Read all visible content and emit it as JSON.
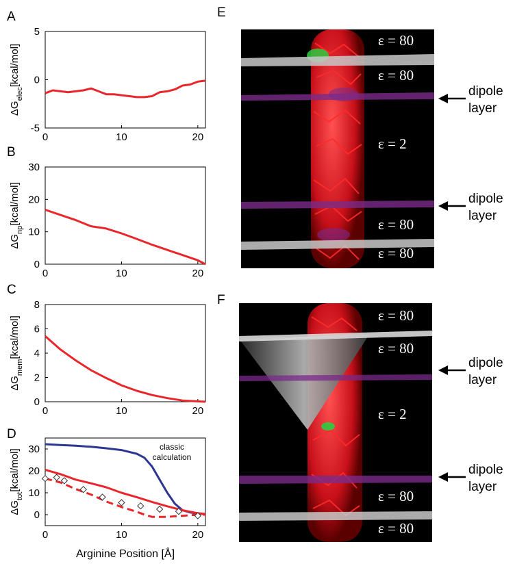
{
  "colors": {
    "red": "#e8262b",
    "blue": "#2c3592",
    "markers": "#333333"
  },
  "chart_data": [
    {
      "type": "line",
      "label": "A",
      "ylabel": "ΔG",
      "ylabel_sub": "elec",
      "ylabel_unit": "[kcal/mol]",
      "xlim": [
        0,
        21
      ],
      "ylim": [
        -5,
        5
      ],
      "xticks": [
        0,
        10,
        20
      ],
      "yticks": [
        -5,
        0,
        5
      ],
      "series": [
        {
          "color": "red",
          "x": [
            0,
            1,
            2,
            3,
            4,
            5,
            6,
            7,
            8,
            9,
            10,
            11,
            12,
            13,
            14,
            15,
            16,
            17,
            18,
            19,
            20,
            21
          ],
          "y": [
            -1.4,
            -1.1,
            -1.2,
            -1.3,
            -1.2,
            -1.1,
            -0.9,
            -1.2,
            -1.5,
            -1.5,
            -1.6,
            -1.7,
            -1.8,
            -1.8,
            -1.7,
            -1.3,
            -1.2,
            -1.0,
            -0.6,
            -0.5,
            -0.2,
            -0.1
          ]
        }
      ]
    },
    {
      "type": "line",
      "label": "B",
      "ylabel": "ΔG",
      "ylabel_sub": "np",
      "ylabel_unit": "[kcal/mol]",
      "xlim": [
        0,
        21
      ],
      "ylim": [
        0,
        30
      ],
      "xticks": [
        0,
        10,
        20
      ],
      "yticks": [
        0,
        10,
        20,
        30
      ],
      "series": [
        {
          "color": "red",
          "x": [
            0,
            2,
            4,
            6,
            8,
            10,
            12,
            14,
            16,
            18,
            20,
            21
          ],
          "y": [
            16.8,
            15.2,
            13.6,
            11.7,
            11.0,
            9.5,
            7.8,
            6.0,
            4.4,
            2.8,
            1.2,
            0
          ]
        }
      ]
    },
    {
      "type": "line",
      "label": "C",
      "ylabel": "ΔG",
      "ylabel_sub": "mem",
      "ylabel_unit": "[kcal/mol]",
      "xlim": [
        0,
        21
      ],
      "ylim": [
        0,
        8
      ],
      "xticks": [
        0,
        10,
        20
      ],
      "yticks": [
        0,
        2,
        4,
        6,
        8
      ],
      "series": [
        {
          "color": "red",
          "x": [
            0,
            2,
            4,
            6,
            8,
            10,
            12,
            14,
            16,
            18,
            20,
            21
          ],
          "y": [
            5.4,
            4.3,
            3.4,
            2.6,
            1.95,
            1.35,
            0.9,
            0.55,
            0.3,
            0.1,
            0.03,
            0
          ]
        }
      ]
    },
    {
      "type": "line",
      "label": "D",
      "ylabel": "ΔG",
      "ylabel_sub": "tot",
      "ylabel_unit": "[kcal/mol]",
      "xlabel": "Arginine Position [Å]",
      "xlim": [
        0,
        21
      ],
      "ylim": [
        -5,
        35
      ],
      "xticks": [
        0,
        10,
        20
      ],
      "yticks": [
        0,
        10,
        20,
        30
      ],
      "annotation": [
        "classic",
        "calculation"
      ],
      "series": [
        {
          "color": "blue",
          "style": "solid",
          "x": [
            0,
            2,
            4,
            6,
            8,
            10,
            12,
            13,
            14,
            15,
            16,
            17,
            18,
            19,
            20,
            21
          ],
          "y": [
            32.2,
            31.8,
            31.5,
            31.0,
            30.3,
            29.5,
            27.8,
            26.0,
            22.0,
            16.0,
            10.0,
            5.0,
            2.0,
            1.0,
            0.5,
            0.3
          ]
        },
        {
          "color": "red",
          "style": "solid",
          "x": [
            0,
            2,
            4,
            6,
            8,
            10,
            12,
            14,
            16,
            18,
            20,
            21
          ],
          "y": [
            20.5,
            18.5,
            16.0,
            14.3,
            12.5,
            10.0,
            8.0,
            5.8,
            3.8,
            2.0,
            0.7,
            0.3
          ]
        },
        {
          "color": "red",
          "style": "dashed",
          "x": [
            0,
            2,
            4,
            6,
            8,
            10,
            12,
            13,
            14,
            16,
            18,
            20,
            21
          ],
          "y": [
            16.5,
            14.7,
            11.7,
            9.2,
            6.0,
            3.5,
            1.3,
            0,
            -1.0,
            -1.0,
            -0.5,
            0,
            0
          ]
        },
        {
          "color": "markers",
          "style": "markers",
          "x": [
            0,
            1.5,
            2.5,
            5,
            7.5,
            10,
            12.5,
            15,
            17.5,
            20
          ],
          "y": [
            16.5,
            17.0,
            15.5,
            11.5,
            8.0,
            5.5,
            4.0,
            2.5,
            1.5,
            -0.5
          ]
        }
      ]
    }
  ],
  "panel_E": {
    "label": "E",
    "eps": [
      "ε = 80",
      "ε = 80",
      "ε = 2",
      "ε = 80",
      "ε = 80"
    ],
    "dipole": [
      [
        "dipole",
        "layer"
      ],
      [
        "dipole",
        "layer"
      ]
    ]
  },
  "panel_F": {
    "label": "F",
    "eps": [
      "ε = 80",
      "ε = 80",
      "ε = 2",
      "ε = 80",
      "ε = 80"
    ],
    "dipole": [
      [
        "dipole",
        "layer"
      ],
      [
        "dipole",
        "layer"
      ]
    ]
  }
}
